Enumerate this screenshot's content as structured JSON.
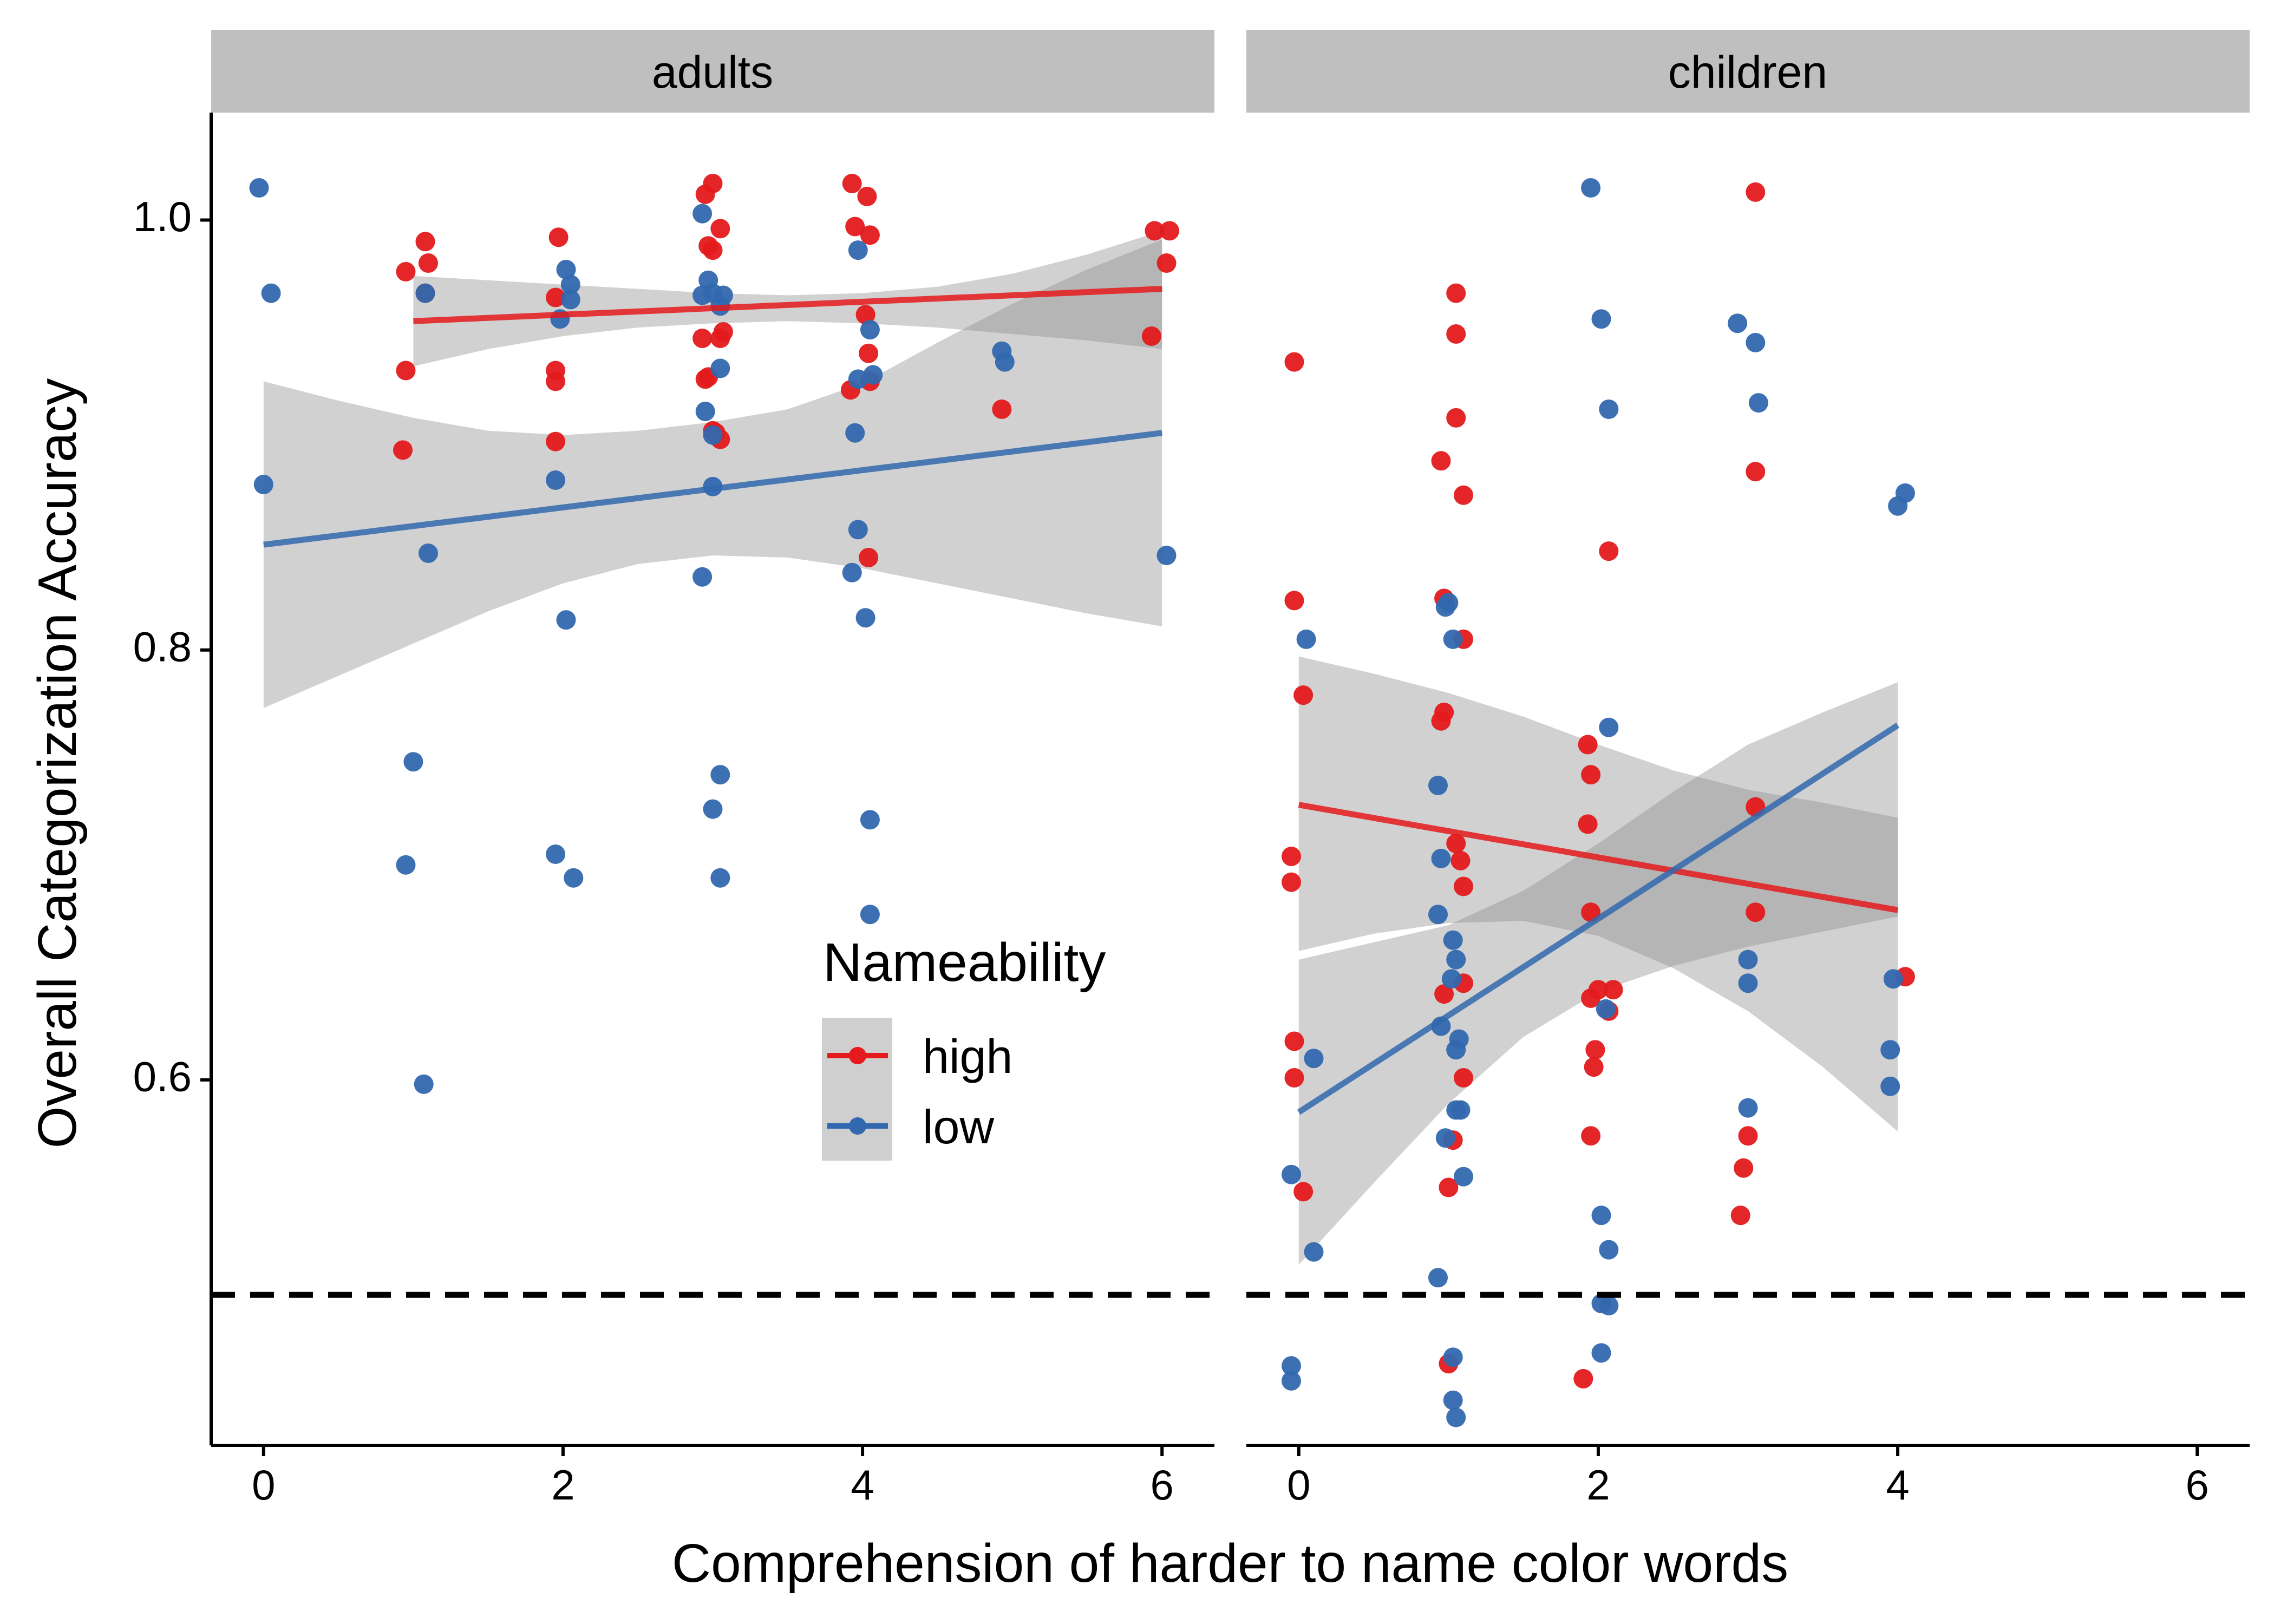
{
  "chart_data": {
    "type": "scatter",
    "xlabel": "Comprehension of harder to name color words",
    "ylabel": "Overall Categorization Accuracy",
    "xlim": [
      -0.35,
      6.35
    ],
    "ylim": [
      0.43,
      1.05
    ],
    "x_ticks": [
      "0",
      "2",
      "4",
      "6"
    ],
    "y_ticks": [
      "0.6",
      "0.8",
      "1.0"
    ],
    "reference_line": {
      "y": 0.5,
      "style": "dashed",
      "color": "#000000"
    },
    "legend": {
      "title": "Nameability",
      "placement": "inside-left-panel-lower-right",
      "entries": [
        {
          "label": "high",
          "color": "#E41A1C"
        },
        {
          "label": "low",
          "color": "#3168AE"
        }
      ]
    },
    "colors": {
      "high": "#E41A1C",
      "low": "#3168AE",
      "ribbon": "#8c8c8c",
      "strip": "#bfbfbf"
    },
    "panels": [
      {
        "label": "adults",
        "series": [
          {
            "name": "high",
            "fit": {
              "x": [
                1,
                6
              ],
              "y": [
                0.953,
                0.968
              ]
            },
            "ribbon": {
              "x": [
                1,
                1.5,
                2,
                2.5,
                3,
                3.5,
                4,
                4.5,
                5,
                5.5,
                6
              ],
              "lower": [
                0.932,
                0.94,
                0.946,
                0.95,
                0.952,
                0.953,
                0.952,
                0.95,
                0.947,
                0.944,
                0.94
              ],
              "upper": [
                0.974,
                0.972,
                0.97,
                0.968,
                0.966,
                0.965,
                0.966,
                0.969,
                0.975,
                0.984,
                0.995
              ]
            },
            "points": [
              [
                0.95,
                0.976
              ],
              [
                1.08,
                0.99
              ],
              [
                1.1,
                0.98
              ],
              [
                1.08,
                0.966
              ],
              [
                0.95,
                0.93
              ],
              [
                0.93,
                0.893
              ],
              [
                1.97,
                0.992
              ],
              [
                1.95,
                0.964
              ],
              [
                1.95,
                0.93
              ],
              [
                1.95,
                0.925
              ],
              [
                1.95,
                0.897
              ],
              [
                2.95,
                1.012
              ],
              [
                3.0,
                1.017
              ],
              [
                3.05,
                0.996
              ],
              [
                2.97,
                0.988
              ],
              [
                3.0,
                0.986
              ],
              [
                2.93,
                0.945
              ],
              [
                3.05,
                0.945
              ],
              [
                3.07,
                0.948
              ],
              [
                2.95,
                0.926
              ],
              [
                2.97,
                0.927
              ],
              [
                3.02,
                0.901
              ],
              [
                3.05,
                0.898
              ],
              [
                3.0,
                0.902
              ],
              [
                3.93,
                1.017
              ],
              [
                3.95,
                0.997
              ],
              [
                4.03,
                1.011
              ],
              [
                4.05,
                0.993
              ],
              [
                4.02,
                0.956
              ],
              [
                4.04,
                0.938
              ],
              [
                3.92,
                0.921
              ],
              [
                4.05,
                0.925
              ],
              [
                4.04,
                0.843
              ],
              [
                4.93,
                0.912
              ],
              [
                5.95,
                0.995
              ],
              [
                6.05,
                0.995
              ],
              [
                6.03,
                0.98
              ],
              [
                5.93,
                0.946
              ]
            ]
          },
          {
            "name": "low",
            "fit": {
              "x": [
                0,
                6
              ],
              "y": [
                0.849,
                0.901
              ]
            },
            "ribbon": {
              "x": [
                0,
                0.5,
                1,
                1.5,
                2,
                2.5,
                3,
                3.5,
                4,
                4.5,
                5,
                5.5,
                6
              ],
              "lower": [
                0.773,
                0.788,
                0.803,
                0.818,
                0.831,
                0.84,
                0.844,
                0.843,
                0.838,
                0.831,
                0.824,
                0.817,
                0.811
              ],
              "upper": [
                0.925,
                0.916,
                0.908,
                0.902,
                0.9,
                0.902,
                0.906,
                0.912,
                0.924,
                0.943,
                0.961,
                0.977,
                0.991
              ]
            },
            "points": [
              [
                -0.03,
                1.015
              ],
              [
                0.05,
                0.966
              ],
              [
                0.0,
                0.877
              ],
              [
                1.08,
                0.966
              ],
              [
                1.1,
                0.845
              ],
              [
                1.0,
                0.748
              ],
              [
                0.95,
                0.7
              ],
              [
                1.07,
                0.598
              ],
              [
                2.02,
                0.977
              ],
              [
                2.05,
                0.97
              ],
              [
                2.05,
                0.963
              ],
              [
                1.98,
                0.954
              ],
              [
                1.95,
                0.879
              ],
              [
                2.02,
                0.814
              ],
              [
                1.95,
                0.705
              ],
              [
                2.07,
                0.694
              ],
              [
                2.93,
                1.003
              ],
              [
                2.97,
                0.972
              ],
              [
                3.0,
                0.966
              ],
              [
                2.93,
                0.965
              ],
              [
                3.05,
                0.96
              ],
              [
                3.07,
                0.965
              ],
              [
                2.95,
                0.911
              ],
              [
                3.05,
                0.931
              ],
              [
                3.0,
                0.9
              ],
              [
                3.0,
                0.876
              ],
              [
                2.93,
                0.834
              ],
              [
                3.05,
                0.742
              ],
              [
                3.0,
                0.726
              ],
              [
                3.05,
                0.694
              ],
              [
                3.97,
                0.986
              ],
              [
                4.05,
                0.949
              ],
              [
                3.97,
                0.926
              ],
              [
                4.07,
                0.928
              ],
              [
                3.95,
                0.901
              ],
              [
                3.97,
                0.856
              ],
              [
                3.93,
                0.836
              ],
              [
                4.02,
                0.815
              ],
              [
                4.05,
                0.721
              ],
              [
                4.05,
                0.677
              ],
              [
                4.93,
                0.939
              ],
              [
                4.95,
                0.934
              ],
              [
                6.03,
                0.844
              ]
            ]
          }
        ]
      },
      {
        "label": "children",
        "series": [
          {
            "name": "high",
            "fit": {
              "x": [
                0,
                4
              ],
              "y": [
                0.728,
                0.679
              ]
            },
            "ribbon": {
              "x": [
                0,
                0.5,
                1,
                1.5,
                2,
                2.5,
                3,
                3.5,
                4
              ],
              "lower": [
                0.66,
                0.668,
                0.673,
                0.674,
                0.667,
                0.652,
                0.632,
                0.606,
                0.576
              ],
              "upper": [
                0.797,
                0.789,
                0.78,
                0.769,
                0.756,
                0.744,
                0.735,
                0.729,
                0.722
              ]
            },
            "points": [
              [
                -0.03,
                0.934
              ],
              [
                -0.03,
                0.823
              ],
              [
                0.03,
                0.779
              ],
              [
                -0.05,
                0.704
              ],
              [
                -0.05,
                0.692
              ],
              [
                -0.03,
                0.618
              ],
              [
                -0.03,
                0.601
              ],
              [
                0.03,
                0.548
              ],
              [
                1.05,
                0.966
              ],
              [
                1.05,
                0.947
              ],
              [
                1.05,
                0.908
              ],
              [
                0.95,
                0.888
              ],
              [
                1.1,
                0.872
              ],
              [
                0.97,
                0.824
              ],
              [
                1.1,
                0.805
              ],
              [
                0.97,
                0.771
              ],
              [
                0.95,
                0.767
              ],
              [
                1.05,
                0.71
              ],
              [
                1.08,
                0.702
              ],
              [
                1.1,
                0.69
              ],
              [
                1.1,
                0.645
              ],
              [
                0.97,
                0.64
              ],
              [
                1.1,
                0.601
              ],
              [
                1.03,
                0.572
              ],
              [
                1.0,
                0.55
              ],
              [
                1.0,
                0.468
              ],
              [
                2.07,
                0.846
              ],
              [
                1.93,
                0.756
              ],
              [
                1.95,
                0.742
              ],
              [
                1.93,
                0.719
              ],
              [
                1.95,
                0.678
              ],
              [
                2.0,
                0.642
              ],
              [
                2.1,
                0.642
              ],
              [
                1.95,
                0.638
              ],
              [
                1.98,
                0.614
              ],
              [
                1.97,
                0.606
              ],
              [
                2.07,
                0.632
              ],
              [
                1.95,
                0.574
              ],
              [
                1.9,
                0.461
              ],
              [
                3.05,
                1.013
              ],
              [
                3.05,
                0.883
              ],
              [
                3.05,
                0.727
              ],
              [
                3.05,
                0.678
              ],
              [
                3.0,
                0.574
              ],
              [
                2.97,
                0.559
              ],
              [
                2.95,
                0.537
              ],
              [
                4.05,
                0.648
              ]
            ]
          },
          {
            "name": "low",
            "fit": {
              "x": [
                0,
                4
              ],
              "y": [
                0.585,
                0.765
              ]
            },
            "ribbon": {
              "x": [
                0,
                0.5,
                1,
                1.5,
                2,
                2.5,
                3,
                3.5,
                4
              ],
              "lower": [
                0.514,
                0.552,
                0.589,
                0.62,
                0.641,
                0.653,
                0.662,
                0.669,
                0.676
              ],
              "upper": [
                0.656,
                0.664,
                0.672,
                0.688,
                0.71,
                0.734,
                0.756,
                0.771,
                0.785
              ]
            },
            "points": [
              [
                0.05,
                0.805
              ],
              [
                0.1,
                0.61
              ],
              [
                -0.05,
                0.556
              ],
              [
                0.1,
                0.52
              ],
              [
                -0.05,
                0.467
              ],
              [
                -0.05,
                0.46
              ],
              [
                1.0,
                0.822
              ],
              [
                0.98,
                0.82
              ],
              [
                1.03,
                0.805
              ],
              [
                0.93,
                0.737
              ],
              [
                0.95,
                0.703
              ],
              [
                0.93,
                0.677
              ],
              [
                1.03,
                0.665
              ],
              [
                1.05,
                0.656
              ],
              [
                1.02,
                0.647
              ],
              [
                0.95,
                0.625
              ],
              [
                1.07,
                0.619
              ],
              [
                1.05,
                0.614
              ],
              [
                1.05,
                0.586
              ],
              [
                1.08,
                0.586
              ],
              [
                0.98,
                0.573
              ],
              [
                1.1,
                0.555
              ],
              [
                0.93,
                0.508
              ],
              [
                1.03,
                0.471
              ],
              [
                1.03,
                0.451
              ],
              [
                1.05,
                0.443
              ],
              [
                1.95,
                1.015
              ],
              [
                2.02,
                0.954
              ],
              [
                2.07,
                0.912
              ],
              [
                2.07,
                0.764
              ],
              [
                2.05,
                0.633
              ],
              [
                2.02,
                0.537
              ],
              [
                2.07,
                0.521
              ],
              [
                2.02,
                0.496
              ],
              [
                2.07,
                0.495
              ],
              [
                2.02,
                0.473
              ],
              [
                2.93,
                0.952
              ],
              [
                3.05,
                0.943
              ],
              [
                3.07,
                0.915
              ],
              [
                3.0,
                0.656
              ],
              [
                3.0,
                0.645
              ],
              [
                3.0,
                0.587
              ],
              [
                4.05,
                0.873
              ],
              [
                4.0,
                0.867
              ],
              [
                3.97,
                0.647
              ],
              [
                3.95,
                0.614
              ],
              [
                3.95,
                0.597
              ]
            ]
          }
        ]
      }
    ]
  }
}
